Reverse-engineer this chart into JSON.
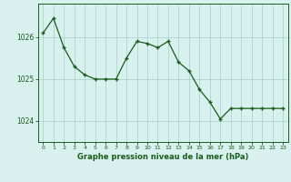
{
  "x": [
    0,
    1,
    2,
    3,
    4,
    5,
    6,
    7,
    8,
    9,
    10,
    11,
    12,
    13,
    14,
    15,
    16,
    17,
    18,
    19,
    20,
    21,
    22,
    23
  ],
  "y": [
    1026.1,
    1026.45,
    1025.75,
    1025.3,
    1025.1,
    1025.0,
    1025.0,
    1025.0,
    1025.5,
    1025.9,
    1025.85,
    1025.75,
    1025.9,
    1025.4,
    1025.2,
    1024.75,
    1024.45,
    1024.05,
    1024.3,
    1024.3,
    1024.3,
    1024.3,
    1024.3,
    1024.3
  ],
  "line_color": "#1a5c1a",
  "marker_color": "#1a5c1a",
  "bg_color": "#d8f0ee",
  "grid_color": "#aed4d0",
  "xlabel": "Graphe pression niveau de la mer (hPa)",
  "xlabel_color": "#1a5c1a",
  "tick_color": "#1a5c1a",
  "yticks": [
    1024,
    1025,
    1026
  ],
  "ylim": [
    1023.5,
    1026.8
  ],
  "xlim": [
    -0.5,
    23.5
  ],
  "title": ""
}
